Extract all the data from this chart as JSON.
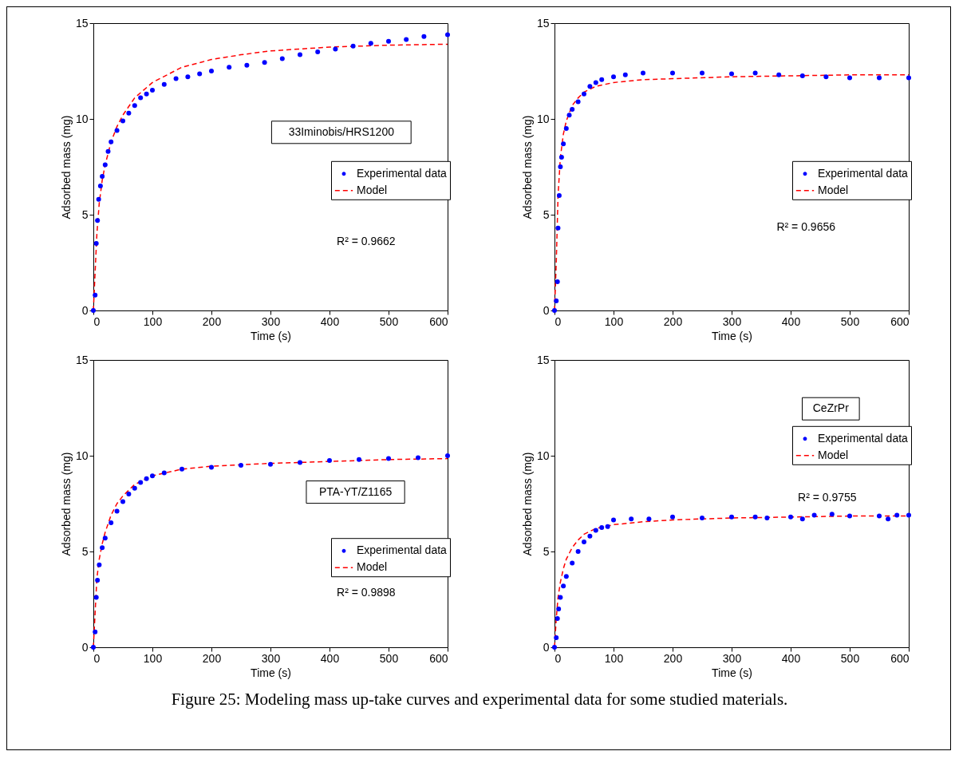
{
  "chart_data": [
    {
      "type": "scatter",
      "xlabel": "Time (s)",
      "ylabel": "Adsorbed mass (mg)",
      "xlim": [
        0,
        600
      ],
      "ylim": [
        0,
        15
      ],
      "xticks": [
        0,
        100,
        200,
        300,
        400,
        500,
        600
      ],
      "yticks": [
        0,
        5,
        10,
        15
      ],
      "grid": false,
      "legend": "right",
      "annotations": [
        "33Iminobis/HRS1200",
        "R² = 0.9662"
      ],
      "series": [
        {
          "name": "Experimental data",
          "type": "scatter",
          "marker": "circle",
          "color": "#0000ff",
          "x": [
            0,
            3,
            5,
            7,
            9,
            12,
            15,
            20,
            25,
            30,
            40,
            50,
            60,
            70,
            80,
            90,
            100,
            120,
            140,
            160,
            180,
            200,
            230,
            260,
            290,
            320,
            350,
            380,
            410,
            440,
            470,
            500,
            530,
            560,
            600
          ],
          "values": [
            0,
            0.8,
            3.5,
            4.7,
            5.8,
            6.5,
            7,
            7.6,
            8.3,
            8.8,
            9.4,
            9.9,
            10.3,
            10.7,
            11.1,
            11.3,
            11.5,
            11.8,
            12.1,
            12.2,
            12.35,
            12.5,
            12.7,
            12.8,
            12.95,
            13.15,
            13.35,
            13.5,
            13.65,
            13.8,
            13.95,
            14.05,
            14.15,
            14.3,
            14.4
          ]
        },
        {
          "name": "Model",
          "type": "line",
          "line_style": "dashed",
          "color": "#ff0000",
          "x": [
            0,
            3,
            6,
            10,
            15,
            20,
            30,
            40,
            50,
            70,
            100,
            150,
            200,
            250,
            300,
            350,
            400,
            450,
            500,
            600
          ],
          "values": [
            0,
            2,
            4,
            5.6,
            6.8,
            7.6,
            8.8,
            9.6,
            10.2,
            11.1,
            11.9,
            12.7,
            13.1,
            13.35,
            13.55,
            13.65,
            13.75,
            13.8,
            13.85,
            13.9
          ]
        }
      ]
    },
    {
      "type": "scatter",
      "xlabel": "Time (s)",
      "ylabel": "Adsorbed mass (mg)",
      "xlim": [
        0,
        600
      ],
      "ylim": [
        0,
        15
      ],
      "xticks": [
        0,
        100,
        200,
        300,
        400,
        500,
        600
      ],
      "yticks": [
        0,
        5,
        10,
        15
      ],
      "grid": false,
      "legend": "right",
      "annotations": [
        "R² = 0.9656"
      ],
      "series": [
        {
          "name": "Experimental data",
          "type": "scatter",
          "marker": "circle",
          "color": "#0000ff",
          "x": [
            0,
            3,
            5,
            6,
            8,
            10,
            12,
            15,
            20,
            25,
            30,
            40,
            50,
            60,
            70,
            80,
            100,
            120,
            150,
            200,
            250,
            300,
            340,
            380,
            420,
            460,
            500,
            550,
            600
          ],
          "values": [
            0,
            0.5,
            1.5,
            4.3,
            6,
            7.5,
            8,
            8.7,
            9.5,
            10.2,
            10.5,
            10.9,
            11.3,
            11.7,
            11.9,
            12.05,
            12.2,
            12.3,
            12.4,
            12.4,
            12.4,
            12.35,
            12.4,
            12.3,
            12.25,
            12.2,
            12.15,
            12.15,
            12.15
          ]
        },
        {
          "name": "Model",
          "type": "line",
          "line_style": "dashed",
          "color": "#ff0000",
          "x": [
            0,
            3,
            6,
            10,
            15,
            20,
            30,
            40,
            50,
            70,
            100,
            150,
            200,
            300,
            400,
            500,
            600
          ],
          "values": [
            0,
            2.5,
            6,
            8,
            9.2,
            9.9,
            10.7,
            11.1,
            11.4,
            11.7,
            11.9,
            12.05,
            12.1,
            12.2,
            12.25,
            12.3,
            12.3
          ]
        }
      ]
    },
    {
      "type": "scatter",
      "xlabel": "Time (s)",
      "ylabel": "Adsorbed mass (mg)",
      "xlim": [
        0,
        600
      ],
      "ylim": [
        0,
        15
      ],
      "xticks": [
        0,
        100,
        200,
        300,
        400,
        500,
        600
      ],
      "yticks": [
        0,
        5,
        10,
        15
      ],
      "grid": false,
      "legend": "bottom right",
      "annotations": [
        "PTA-YT/Z1165",
        "R² = 0.9898"
      ],
      "series": [
        {
          "name": "Experimental data",
          "type": "scatter",
          "marker": "circle",
          "color": "#0000ff",
          "x": [
            0,
            3,
            5,
            7,
            10,
            15,
            20,
            30,
            40,
            50,
            60,
            70,
            80,
            90,
            100,
            120,
            150,
            200,
            250,
            300,
            350,
            400,
            450,
            500,
            550,
            600
          ],
          "values": [
            0,
            0.8,
            2.6,
            3.5,
            4.3,
            5.2,
            5.7,
            6.5,
            7.1,
            7.6,
            8,
            8.3,
            8.6,
            8.8,
            8.95,
            9.1,
            9.3,
            9.4,
            9.5,
            9.55,
            9.65,
            9.75,
            9.8,
            9.85,
            9.9,
            10
          ]
        },
        {
          "name": "Model",
          "type": "line",
          "line_style": "dashed",
          "color": "#ff0000",
          "x": [
            0,
            3,
            6,
            10,
            15,
            20,
            30,
            40,
            50,
            70,
            100,
            150,
            200,
            300,
            400,
            500,
            600
          ],
          "values": [
            0,
            1.8,
            3.6,
            4.6,
            5.4,
            6,
            6.9,
            7.5,
            7.9,
            8.5,
            8.95,
            9.3,
            9.45,
            9.6,
            9.7,
            9.8,
            9.85
          ]
        }
      ]
    },
    {
      "type": "scatter",
      "xlabel": "Time (s)",
      "ylabel": "Adsorbed mass (mg)",
      "xlim": [
        0,
        600
      ],
      "ylim": [
        0,
        15
      ],
      "xticks": [
        0,
        100,
        200,
        300,
        400,
        500,
        600
      ],
      "yticks": [
        0,
        5,
        10,
        15
      ],
      "grid": false,
      "legend": "top right",
      "annotations": [
        "CeZrPr",
        "R² = 0.9755"
      ],
      "series": [
        {
          "name": "Experimental data",
          "type": "scatter",
          "marker": "circle",
          "color": "#0000ff",
          "x": [
            0,
            3,
            5,
            7,
            10,
            15,
            20,
            30,
            40,
            50,
            60,
            70,
            80,
            90,
            100,
            130,
            160,
            200,
            250,
            300,
            340,
            360,
            400,
            420,
            440,
            470,
            500,
            550,
            565,
            580,
            600
          ],
          "values": [
            0,
            0.5,
            1.5,
            2,
            2.6,
            3.2,
            3.7,
            4.4,
            5,
            5.5,
            5.8,
            6.1,
            6.25,
            6.3,
            6.65,
            6.7,
            6.7,
            6.8,
            6.75,
            6.8,
            6.8,
            6.75,
            6.8,
            6.7,
            6.9,
            6.95,
            6.85,
            6.85,
            6.7,
            6.9,
            6.9
          ]
        },
        {
          "name": "Model",
          "type": "line",
          "line_style": "dashed",
          "color": "#ff0000",
          "x": [
            0,
            3,
            6,
            10,
            15,
            20,
            30,
            40,
            50,
            70,
            100,
            150,
            200,
            300,
            400,
            500,
            600
          ],
          "values": [
            0,
            1.5,
            2.6,
            3.4,
            4.1,
            4.6,
            5.2,
            5.6,
            5.9,
            6.2,
            6.4,
            6.55,
            6.65,
            6.75,
            6.8,
            6.85,
            6.85
          ]
        }
      ]
    },
    {
      "type": "other",
      "annotations": [
        "Figure 25: Modeling mass up-take curves and experimental data for some studied materials."
      ]
    }
  ]
}
